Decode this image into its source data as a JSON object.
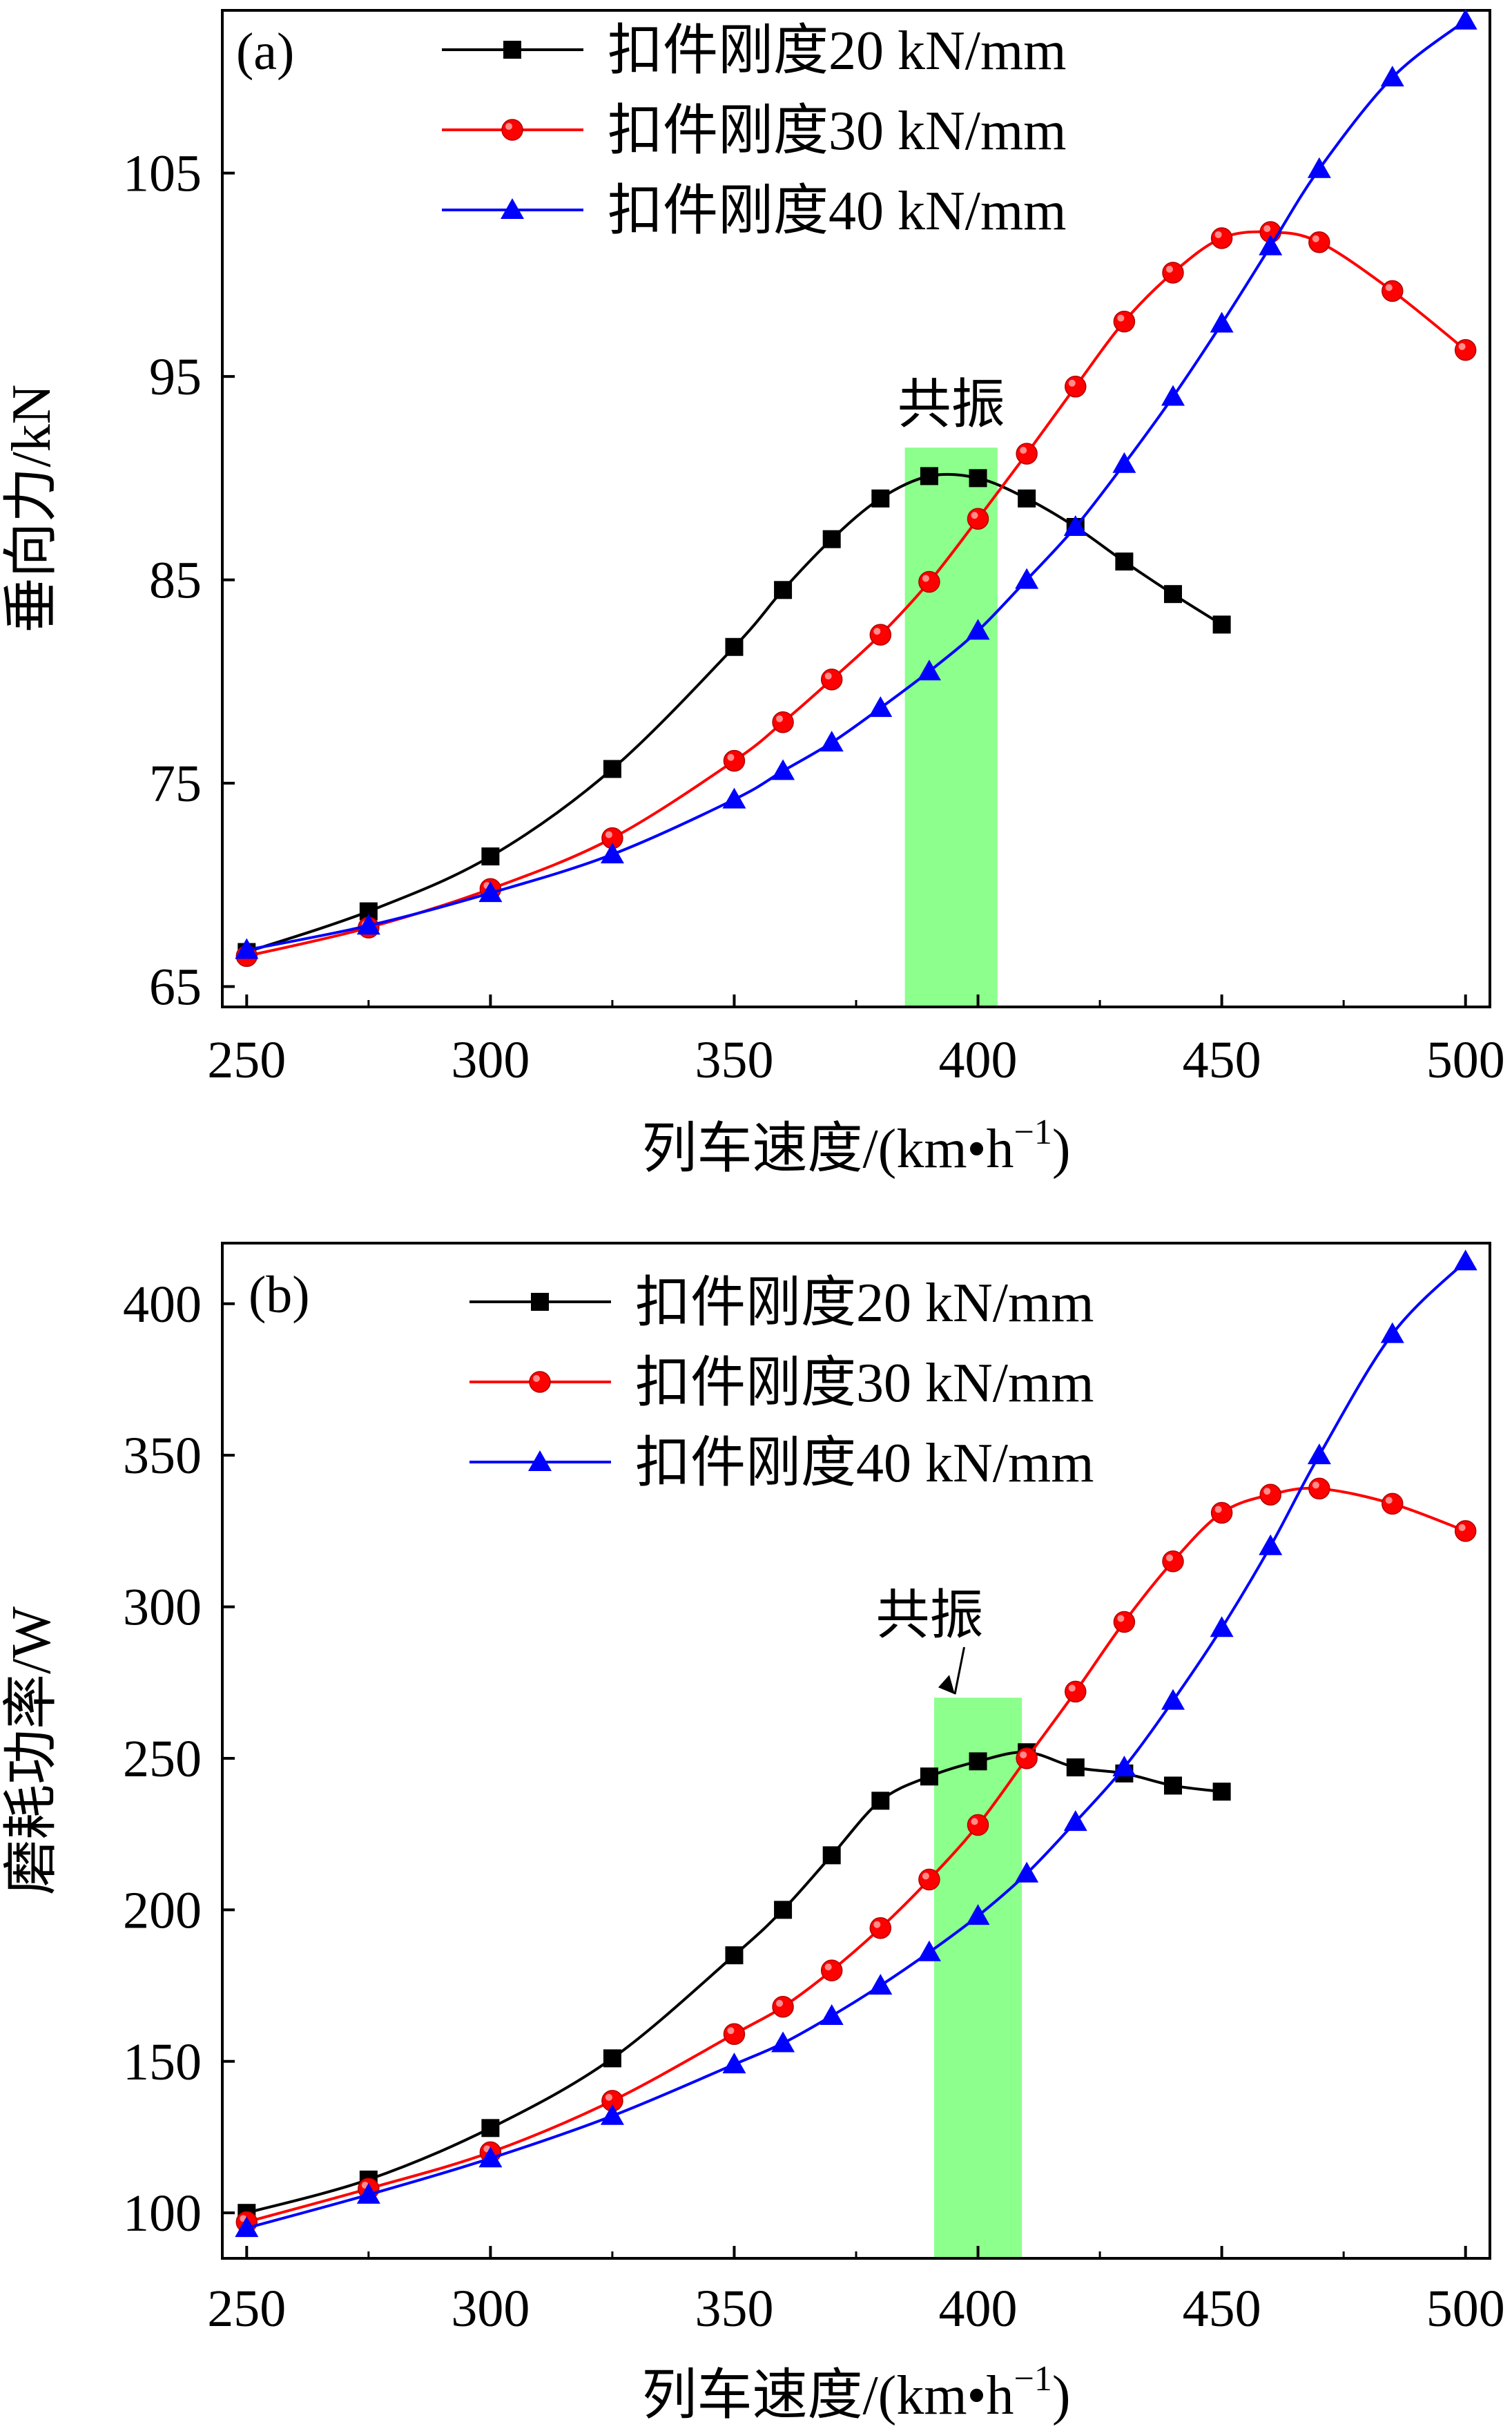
{
  "chart_data": [
    {
      "type": "line",
      "panel_label": "(a)",
      "xlabel": "列车速度/(km•h",
      "xlabel_superscript": "−1",
      "xlabel_suffix": ")",
      "ylabel": "垂向力/kN",
      "xlim": [
        245,
        505
      ],
      "ylim": [
        64,
        113
      ],
      "xticks": [
        250,
        300,
        350,
        400,
        450,
        500
      ],
      "yticks": [
        65,
        75,
        85,
        95,
        105
      ],
      "legend_position": "top-center",
      "annotation": {
        "text": "共振",
        "band": [
          385,
          404
        ]
      },
      "series": [
        {
          "name": "扣件刚度20 kN/mm",
          "color": "#000000",
          "marker": "square",
          "x": [
            250,
            275,
            300,
            325,
            350,
            360,
            370,
            380,
            390,
            400,
            410,
            420,
            430,
            440,
            450
          ],
          "y": [
            66.7,
            68.7,
            71.4,
            75.7,
            81.7,
            84.5,
            87.0,
            89.0,
            90.1,
            90.0,
            89.0,
            87.6,
            85.9,
            84.3,
            82.8
          ]
        },
        {
          "name": "扣件刚度30 kN/mm",
          "color": "#ff0000",
          "marker": "circle",
          "x": [
            250,
            275,
            300,
            325,
            350,
            360,
            370,
            380,
            390,
            400,
            410,
            420,
            430,
            440,
            450,
            460,
            470,
            485,
            500
          ],
          "y": [
            66.5,
            67.9,
            69.8,
            72.3,
            76.1,
            78.0,
            80.1,
            82.3,
            84.9,
            88.0,
            91.2,
            94.5,
            97.7,
            100.1,
            101.8,
            102.1,
            101.6,
            99.2,
            96.3
          ]
        },
        {
          "name": "扣件刚度40 kN/mm",
          "color": "#0000ff",
          "marker": "triangle",
          "x": [
            250,
            275,
            300,
            325,
            350,
            360,
            370,
            380,
            390,
            400,
            410,
            420,
            430,
            440,
            450,
            460,
            470,
            485,
            500
          ],
          "y": [
            66.8,
            68.0,
            69.6,
            71.5,
            74.2,
            75.6,
            77.0,
            78.7,
            80.5,
            82.5,
            85.0,
            87.6,
            90.7,
            94.0,
            97.6,
            101.4,
            105.2,
            109.7,
            112.5
          ]
        }
      ]
    },
    {
      "type": "line",
      "panel_label": "(b)",
      "xlabel": "列车速度/(km•h",
      "xlabel_superscript": "−1",
      "xlabel_suffix": ")",
      "ylabel": "磨耗功率/W",
      "xlim": [
        245,
        505
      ],
      "ylim": [
        85,
        420
      ],
      "xticks": [
        250,
        300,
        350,
        400,
        450,
        500
      ],
      "yticks": [
        100,
        150,
        200,
        250,
        300,
        350,
        400
      ],
      "legend_position": "top-center",
      "annotation": {
        "text": "共振",
        "band": [
          391,
          409
        ]
      },
      "series": [
        {
          "name": "扣件刚度20 kN/mm",
          "color": "#000000",
          "marker": "square",
          "x": [
            250,
            275,
            300,
            325,
            350,
            360,
            370,
            380,
            390,
            400,
            410,
            420,
            430,
            440,
            450
          ],
          "y": [
            100,
            111,
            128,
            151,
            185,
            200,
            218,
            236,
            244,
            249,
            252,
            247,
            245,
            241,
            239
          ]
        },
        {
          "name": "扣件刚度30 kN/mm",
          "color": "#ff0000",
          "marker": "circle",
          "x": [
            250,
            275,
            300,
            325,
            350,
            360,
            370,
            380,
            390,
            400,
            410,
            420,
            430,
            440,
            450,
            460,
            470,
            485,
            500
          ],
          "y": [
            97,
            108,
            120,
            137,
            159,
            168,
            180,
            194,
            210,
            228,
            250,
            272,
            295,
            315,
            331,
            337,
            339,
            334,
            325
          ]
        },
        {
          "name": "扣件刚度40 kN/mm",
          "color": "#0000ff",
          "marker": "triangle",
          "x": [
            250,
            275,
            300,
            325,
            350,
            360,
            370,
            380,
            390,
            400,
            410,
            420,
            430,
            440,
            450,
            460,
            470,
            485,
            500
          ],
          "y": [
            95,
            106,
            118,
            132,
            149,
            156,
            165,
            175,
            186,
            198,
            212,
            229,
            247,
            269,
            293,
            320,
            350,
            390,
            414
          ]
        }
      ]
    }
  ]
}
